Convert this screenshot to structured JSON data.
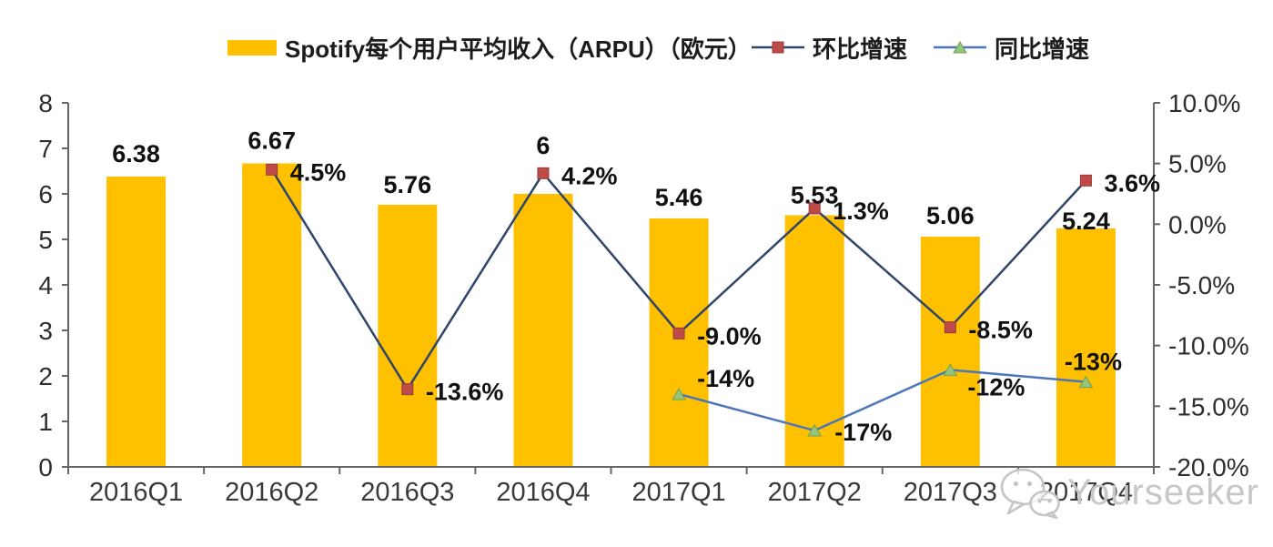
{
  "watermark": {
    "text": "Yourseeker",
    "icon": "wechat-icon",
    "color": "#c7c7c7"
  },
  "chart_data": {
    "type": "bar",
    "subtype": "combo-bar-line",
    "grid": false,
    "legend_position": "top",
    "categories": [
      "2016Q1",
      "2016Q2",
      "2016Q3",
      "2016Q4",
      "2017Q1",
      "2017Q2",
      "2017Q3",
      "2017Q4"
    ],
    "series": [
      {
        "name": "Spotify每个用户平均收入（ARPU）（欧元）",
        "type": "bar",
        "axis": "left",
        "color": "#FFC000",
        "values": [
          6.38,
          6.67,
          5.76,
          6,
          5.46,
          5.53,
          5.06,
          5.24
        ],
        "labels": [
          "6.38",
          "6.67",
          "5.76",
          "6",
          "5.46",
          "5.53",
          "5.06",
          "5.24"
        ]
      },
      {
        "name": "环比增速",
        "type": "line",
        "axis": "right",
        "color": "#2F4569",
        "marker": "square",
        "marker_color": "#BE4B48",
        "marker_edge": "#9A3A38",
        "values": [
          null,
          4.5,
          -13.6,
          4.2,
          -9.0,
          1.3,
          -8.5,
          3.6
        ],
        "labels": [
          null,
          "4.5%",
          "-13.6%",
          "4.2%",
          "-9.0%",
          "1.3%",
          "-8.5%",
          "3.6%"
        ]
      },
      {
        "name": "同比增速",
        "type": "line",
        "axis": "right",
        "color": "#4B76BC",
        "marker": "triangle",
        "marker_color": "#94C47D",
        "marker_edge": "#6FA152",
        "values": [
          null,
          null,
          null,
          null,
          -14,
          -17,
          -12,
          -13
        ],
        "labels": [
          null,
          null,
          null,
          null,
          "-14%",
          "-17%",
          "-12%",
          "-13%"
        ]
      }
    ],
    "left_axis": {
      "min": 0,
      "max": 8,
      "tick_values": [
        0,
        1,
        2,
        3,
        4,
        5,
        6,
        7,
        8
      ],
      "tick_labels": [
        "0",
        "1",
        "2",
        "3",
        "4",
        "5",
        "6",
        "7",
        "8"
      ]
    },
    "right_axis": {
      "min": -20,
      "max": 10,
      "tick_values": [
        10,
        5,
        0,
        -5,
        -10,
        -15,
        -20
      ],
      "tick_labels": [
        "10.0%",
        "5.0%",
        "0.0%",
        "-5.0%",
        "-10.0%",
        "-15.0%",
        "-20.0%"
      ]
    }
  }
}
